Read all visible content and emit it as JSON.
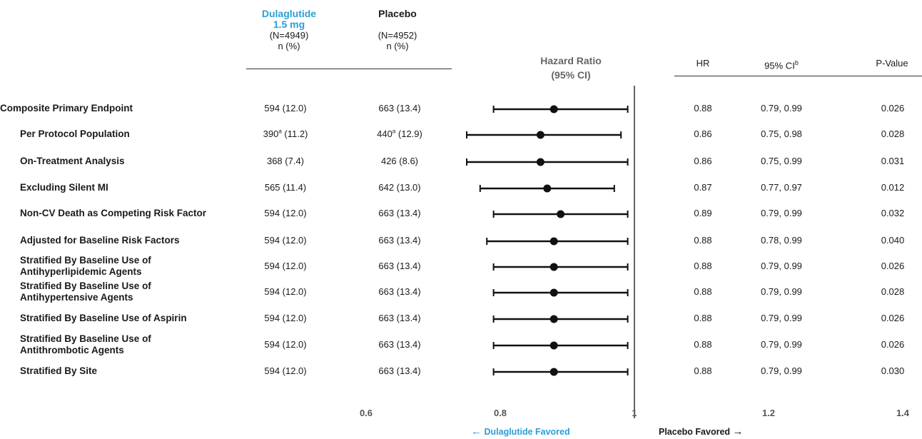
{
  "header": {
    "drug_line1": "Dulaglutide",
    "drug_line2": "1.5 mg",
    "drug_n": "(N=4949)",
    "drug_np": "n (%)",
    "placebo": "Placebo",
    "placebo_n": "(N=4952)",
    "placebo_np": "n (%)",
    "hr_title_1": "Hazard Ratio",
    "hr_title_2": "(95% CI)",
    "col_hr": "HR",
    "col_ci": "95% CI",
    "col_ci_sup": "b",
    "col_p": "P-Value"
  },
  "footer": {
    "left_favored": "Dulaglutide Favored",
    "right_favored": "Placebo Favored",
    "left_arrow": "←",
    "right_arrow": "→"
  },
  "chart_data": {
    "type": "forest",
    "x_ticks": [
      "0.6",
      "0.8",
      "1",
      "1.2",
      "1.4"
    ],
    "xlim": [
      0.6,
      1.4
    ],
    "reference_line": 1,
    "rows": [
      {
        "label": "Composite Primary Endpoint",
        "indent": false,
        "drug": "594 (12.0)",
        "drug_sup": "",
        "drug_rest": "",
        "placebo": "663 (13.4)",
        "placebo_sup": "",
        "placebo_rest": "",
        "hr": 0.88,
        "lo": 0.79,
        "hi": 0.99,
        "hr_text": "0.88",
        "ci_text": "0.79, 0.99",
        "p": "0.026"
      },
      {
        "label": "Per Protocol Population",
        "indent": true,
        "drug": "390",
        "drug_sup": "a",
        "drug_rest": " (11.2)",
        "placebo": "440",
        "placebo_sup": "a",
        "placebo_rest": " (12.9)",
        "hr": 0.86,
        "lo": 0.75,
        "hi": 0.98,
        "hr_text": "0.86",
        "ci_text": "0.75, 0.98",
        "p": "0.028"
      },
      {
        "label": "On-Treatment Analysis",
        "indent": true,
        "drug": "368 (7.4)",
        "drug_sup": "",
        "drug_rest": "",
        "placebo": "426 (8.6)",
        "placebo_sup": "",
        "placebo_rest": "",
        "hr": 0.86,
        "lo": 0.75,
        "hi": 0.99,
        "hr_text": "0.86",
        "ci_text": "0.75, 0.99",
        "p": "0.031"
      },
      {
        "label": "Excluding Silent MI",
        "indent": true,
        "drug": "565 (11.4)",
        "drug_sup": "",
        "drug_rest": "",
        "placebo": "642 (13.0)",
        "placebo_sup": "",
        "placebo_rest": "",
        "hr": 0.87,
        "lo": 0.77,
        "hi": 0.97,
        "hr_text": "0.87",
        "ci_text": "0.77, 0.97",
        "p": "0.012"
      },
      {
        "label": "Non-CV Death as Competing Risk Factor",
        "indent": true,
        "drug": "594 (12.0)",
        "drug_sup": "",
        "drug_rest": "",
        "placebo": "663 (13.4)",
        "placebo_sup": "",
        "placebo_rest": "",
        "hr": 0.89,
        "lo": 0.79,
        "hi": 0.99,
        "hr_text": "0.89",
        "ci_text": "0.79, 0.99",
        "p": "0.032"
      },
      {
        "label": "Adjusted for Baseline Risk Factors",
        "indent": true,
        "drug": "594 (12.0)",
        "drug_sup": "",
        "drug_rest": "",
        "placebo": "663 (13.4)",
        "placebo_sup": "",
        "placebo_rest": "",
        "hr": 0.88,
        "lo": 0.78,
        "hi": 0.99,
        "hr_text": "0.88",
        "ci_text": "0.78, 0.99",
        "p": "0.040"
      },
      {
        "label": "Stratified By Baseline Use of Antihyperlipidemic Agents",
        "indent": true,
        "drug": "594 (12.0)",
        "drug_sup": "",
        "drug_rest": "",
        "placebo": "663 (13.4)",
        "placebo_sup": "",
        "placebo_rest": "",
        "hr": 0.88,
        "lo": 0.79,
        "hi": 0.99,
        "hr_text": "0.88",
        "ci_text": "0.79, 0.99",
        "p": "0.026"
      },
      {
        "label": "Stratified By Baseline Use of Antihypertensive Agents",
        "indent": true,
        "drug": "594 (12.0)",
        "drug_sup": "",
        "drug_rest": "",
        "placebo": "663 (13.4)",
        "placebo_sup": "",
        "placebo_rest": "",
        "hr": 0.88,
        "lo": 0.79,
        "hi": 0.99,
        "hr_text": "0.88",
        "ci_text": "0.79, 0.99",
        "p": "0.028"
      },
      {
        "label": "Stratified By Baseline Use of Aspirin",
        "indent": true,
        "drug": "594 (12.0)",
        "drug_sup": "",
        "drug_rest": "",
        "placebo": "663 (13.4)",
        "placebo_sup": "",
        "placebo_rest": "",
        "hr": 0.88,
        "lo": 0.79,
        "hi": 0.99,
        "hr_text": "0.88",
        "ci_text": "0.79, 0.99",
        "p": "0.026"
      },
      {
        "label": "Stratified By Baseline Use of Antithrombotic Agents",
        "indent": true,
        "drug": "594 (12.0)",
        "drug_sup": "",
        "drug_rest": "",
        "placebo": "663 (13.4)",
        "placebo_sup": "",
        "placebo_rest": "",
        "hr": 0.88,
        "lo": 0.79,
        "hi": 0.99,
        "hr_text": "0.88",
        "ci_text": "0.79, 0.99",
        "p": "0.026"
      },
      {
        "label": "Stratified By Site",
        "indent": true,
        "drug": "594 (12.0)",
        "drug_sup": "",
        "drug_rest": "",
        "placebo": "663 (13.4)",
        "placebo_sup": "",
        "placebo_rest": "",
        "hr": 0.88,
        "lo": 0.79,
        "hi": 0.99,
        "hr_text": "0.88",
        "ci_text": "0.79, 0.99",
        "p": "0.030"
      }
    ]
  }
}
